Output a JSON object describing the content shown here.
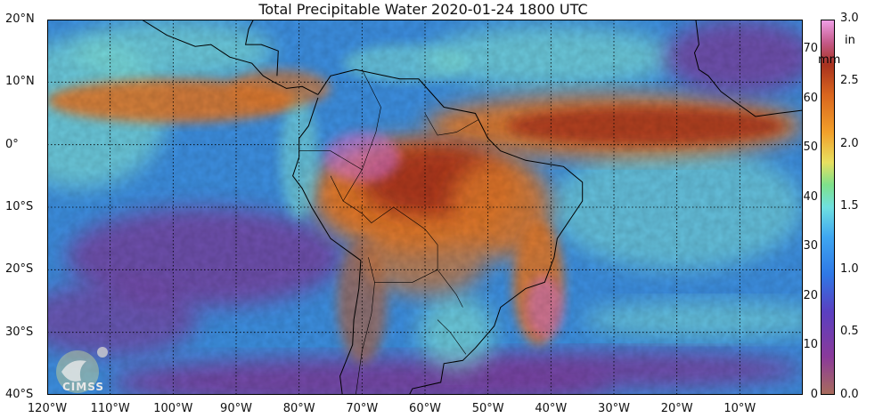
{
  "title": "Total Precipitable Water  2020-01-24 1800 UTC",
  "map": {
    "lat_labels": [
      "20°N",
      "10°N",
      "0°",
      "10°S",
      "20°S",
      "30°S",
      "40°S"
    ],
    "lon_labels": [
      "120°W",
      "110°W",
      "100°W",
      "90°W",
      "80°W",
      "70°W",
      "60°W",
      "50°W",
      "40°W",
      "30°W",
      "20°W",
      "10°W"
    ],
    "lat_range": [
      -40,
      20
    ],
    "lon_range": [
      -120,
      0
    ],
    "grid": true,
    "colors": {
      "ocean_dry": "#7a3fa0",
      "ocean_mid": "#3d8fe0",
      "ocean_moist": "#7ee0d8",
      "itcz": "#e0782a",
      "peak": "#a8321e",
      "extreme": "#d070d8",
      "land_dry": "#a26a58",
      "coast": "#000000"
    }
  },
  "colorbar": {
    "mm_unit": "mm",
    "in_unit": "in",
    "mm_ticks": [
      "0",
      "10",
      "20",
      "30",
      "40",
      "50",
      "60",
      "70"
    ],
    "in_ticks": [
      "0.0",
      "0.5",
      "1.0",
      "1.5",
      "2.0",
      "2.5",
      "3.0"
    ],
    "range_mm": [
      0,
      76
    ]
  },
  "logo": {
    "text": "CIMSS"
  }
}
